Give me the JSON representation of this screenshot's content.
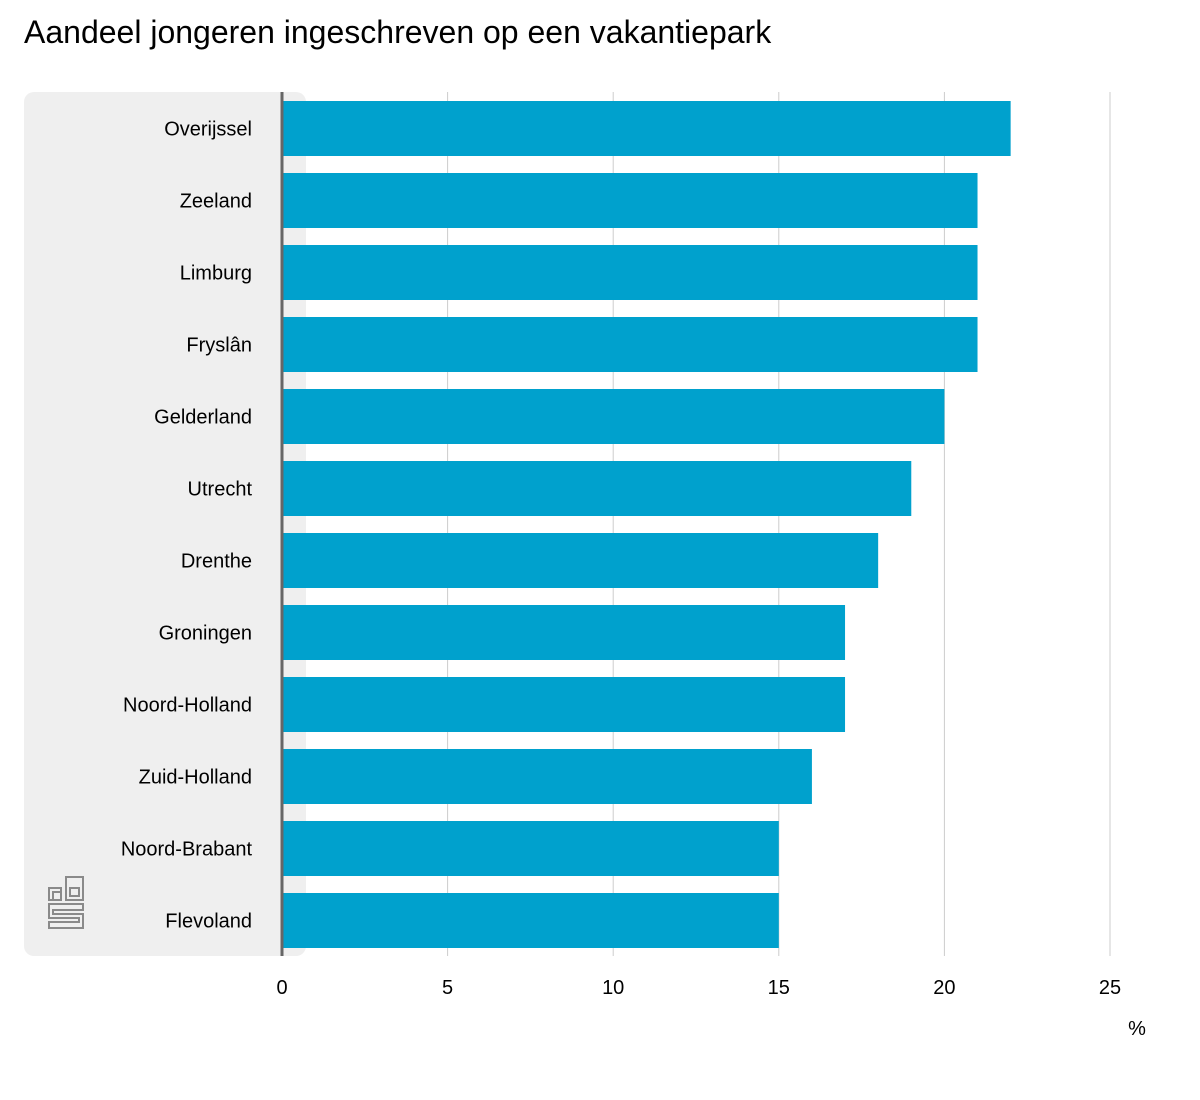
{
  "title": "Aandeel jongeren ingeschreven op een vakantiepark",
  "chart_data": {
    "type": "bar",
    "orientation": "horizontal",
    "title": "Aandeel jongeren ingeschreven op een vakantiepark",
    "categories": [
      "Overijssel",
      "Zeeland",
      "Limburg",
      "Fryslân",
      "Gelderland",
      "Utrecht",
      "Drenthe",
      "Groningen",
      "Noord-Holland",
      "Zuid-Holland",
      "Noord-Brabant",
      "Flevoland"
    ],
    "values": [
      22,
      21,
      21,
      21,
      20,
      19,
      18,
      17,
      17,
      16,
      15,
      15
    ],
    "xlim": [
      0,
      25
    ],
    "xticks": [
      "0",
      "5",
      "10",
      "15",
      "20",
      "25"
    ],
    "xlabel": "%",
    "grid": true,
    "bar_color": "#00a1cd",
    "panel_color": "#efefef",
    "gridline_color": "#cccccc",
    "axis_color": "#666666"
  },
  "logo": {
    "icon": "cbs-logo-icon",
    "text": "cbs"
  }
}
